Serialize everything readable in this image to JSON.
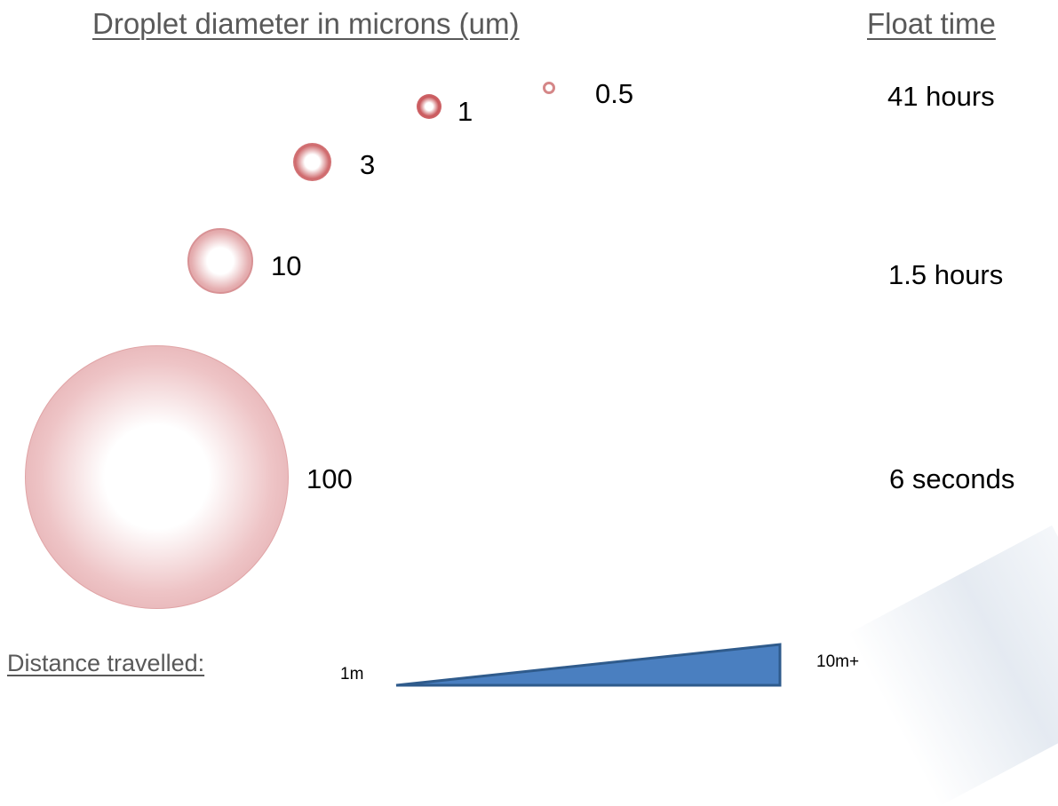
{
  "headings": {
    "diameter": "Droplet diameter in microns (um)",
    "float_time": "Float time"
  },
  "droplets": [
    {
      "diameter": "0.5"
    },
    {
      "diameter": "1"
    },
    {
      "diameter": "3"
    },
    {
      "diameter": "10"
    },
    {
      "diameter": "100"
    }
  ],
  "float_times": [
    {
      "label": "41 hours"
    },
    {
      "label": "1.5 hours"
    },
    {
      "label": "6 seconds"
    }
  ],
  "distance": {
    "label": "Distance travelled:",
    "min": "1m",
    "max": "10m+"
  },
  "colors": {
    "droplet_outer": "#d9888a",
    "droplet_inner": "#ffffff",
    "wedge_fill": "#4a7fc0",
    "wedge_stroke": "#2f5b8c",
    "heading_text": "#595959"
  }
}
